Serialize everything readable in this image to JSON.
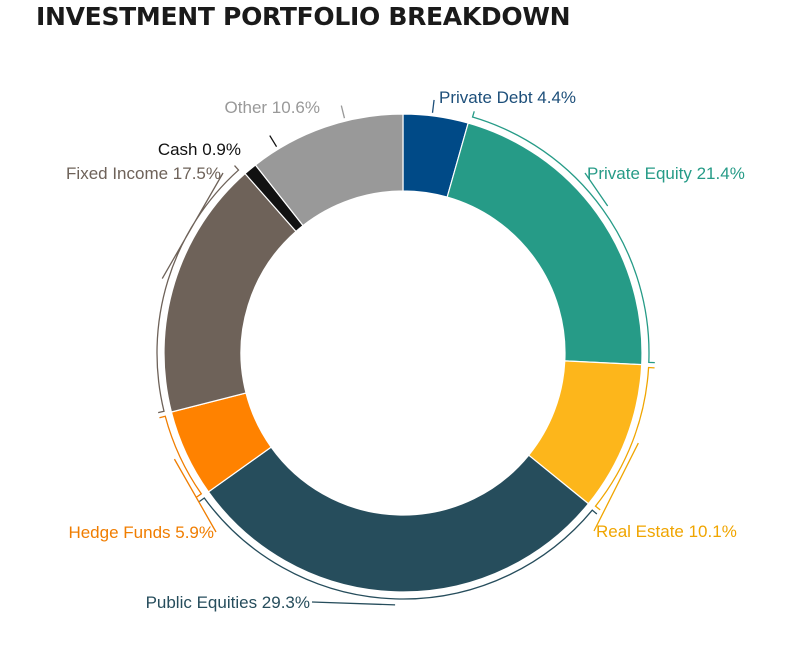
{
  "chart_data": {
    "type": "donut",
    "title": "INVESTMENT PORTFOLIO BREAKDOWN",
    "slices": [
      {
        "name": "Private Debt",
        "value": 4.4,
        "color": "#004a87",
        "label": "Private Debt 4.4%"
      },
      {
        "name": "Private Equity",
        "value": 21.4,
        "color": "#269b87",
        "label": "Private Equity 21.4%"
      },
      {
        "name": "Real Estate",
        "value": 10.1,
        "color": "#fdb61b",
        "label": "Real Estate 10.1%"
      },
      {
        "name": "Public Equities",
        "value": 29.3,
        "color": "#264d5c",
        "label": "Public Equities 29.3%"
      },
      {
        "name": "Hedge Funds",
        "value": 5.9,
        "color": "#ff8200",
        "label": "Hedge Funds 5.9%"
      },
      {
        "name": "Fixed Income",
        "value": 17.5,
        "color": "#6e6259",
        "label": "Fixed Income 17.5%"
      },
      {
        "name": "Cash",
        "value": 0.9,
        "color": "#111111",
        "label": "Cash 0.9%"
      },
      {
        "name": "Other",
        "value": 10.6,
        "color": "#999999",
        "label": "Other 10.6%"
      }
    ],
    "label_colors": {
      "Private Debt": "#1d4f7a",
      "Private Equity": "#269b87",
      "Real Estate": "#f0a500",
      "Public Equities": "#264d5c",
      "Hedge Funds": "#f07d00",
      "Fixed Income": "#6e6259",
      "Cash": "#111111",
      "Other": "#999999"
    },
    "legend": "none"
  }
}
